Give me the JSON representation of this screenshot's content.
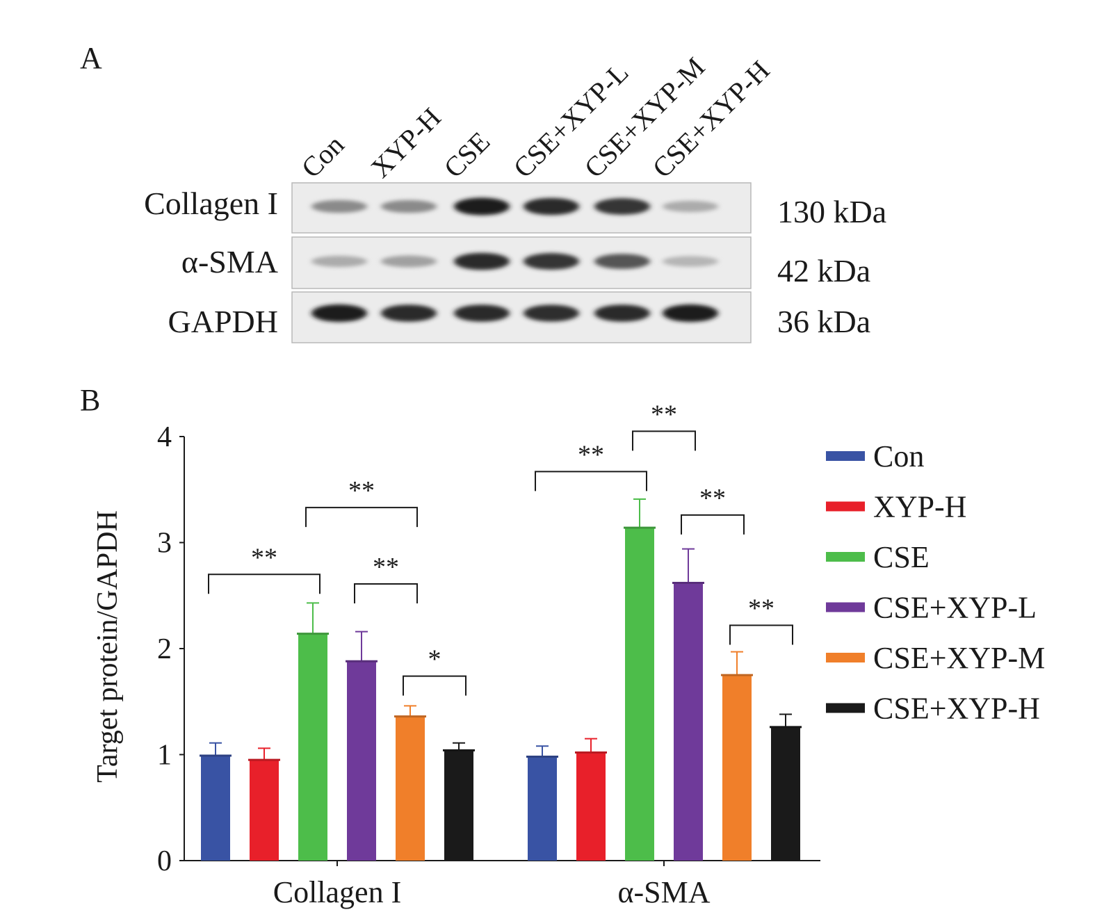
{
  "panel_a": {
    "label": "A",
    "lanes": [
      "Con",
      "XYP-H",
      "CSE",
      "CSE+XYP-L",
      "CSE+XYP-M",
      "CSE+XYP-H"
    ],
    "rows": [
      {
        "protein": "Collagen I",
        "size": "130 kDa",
        "intensity": [
          0.45,
          0.45,
          0.95,
          0.9,
          0.85,
          0.3
        ]
      },
      {
        "protein": "α-SMA",
        "size": "42 kDa",
        "intensity": [
          0.3,
          0.35,
          0.9,
          0.85,
          0.7,
          0.25
        ]
      },
      {
        "protein": "GAPDH",
        "size": "36 kDa",
        "intensity": [
          0.95,
          0.9,
          0.9,
          0.88,
          0.9,
          0.95
        ]
      }
    ]
  },
  "panel_b": {
    "label": "B"
  },
  "chart_data": {
    "type": "bar",
    "title": "",
    "xlabel": "",
    "ylabel": "Target protein/GAPDH",
    "ylim": [
      0,
      4
    ],
    "yticks": [
      "0",
      "1",
      "2",
      "3",
      "4"
    ],
    "categories": [
      "Collagen I",
      "α-SMA"
    ],
    "legend_position": "right",
    "series": [
      {
        "name": "Con",
        "color": "#3953a4",
        "values": [
          0.99,
          0.98
        ],
        "errors": [
          0.12,
          0.1
        ]
      },
      {
        "name": "XYP-H",
        "color": "#e8202a",
        "values": [
          0.95,
          1.02
        ],
        "errors": [
          0.11,
          0.13
        ]
      },
      {
        "name": "CSE",
        "color": "#4dbd4a",
        "values": [
          2.14,
          3.14
        ],
        "errors": [
          0.29,
          0.27
        ]
      },
      {
        "name": "CSE+XYP-L",
        "color": "#6f3a9a",
        "values": [
          1.88,
          2.62
        ],
        "errors": [
          0.28,
          0.32
        ]
      },
      {
        "name": "CSE+XYP-M",
        "color": "#f07f2a",
        "values": [
          1.36,
          1.75
        ],
        "errors": [
          0.1,
          0.22
        ]
      },
      {
        "name": "CSE+XYP-H",
        "color": "#1a1a1a",
        "values": [
          1.04,
          1.26
        ],
        "errors": [
          0.07,
          0.12
        ]
      }
    ],
    "significance": [
      {
        "category": 0,
        "from": 0,
        "to": 2,
        "label": "**",
        "level": 2.7
      },
      {
        "category": 0,
        "from": 2,
        "to": 4,
        "label": "**",
        "level": 3.33
      },
      {
        "category": 0,
        "from": 3,
        "to": 4,
        "label": "**",
        "level": 2.61
      },
      {
        "category": 0,
        "from": 4,
        "to": 5,
        "label": "*",
        "level": 1.74
      },
      {
        "category": 1,
        "from": 0,
        "to": 2,
        "label": "**",
        "level": 3.67
      },
      {
        "category": 1,
        "from": 2,
        "to": 3,
        "label": "**",
        "level": 4.05
      },
      {
        "category": 1,
        "from": 3,
        "to": 4,
        "label": "**",
        "level": 3.26
      },
      {
        "category": 1,
        "from": 4,
        "to": 5,
        "label": "**",
        "level": 2.22
      }
    ]
  }
}
